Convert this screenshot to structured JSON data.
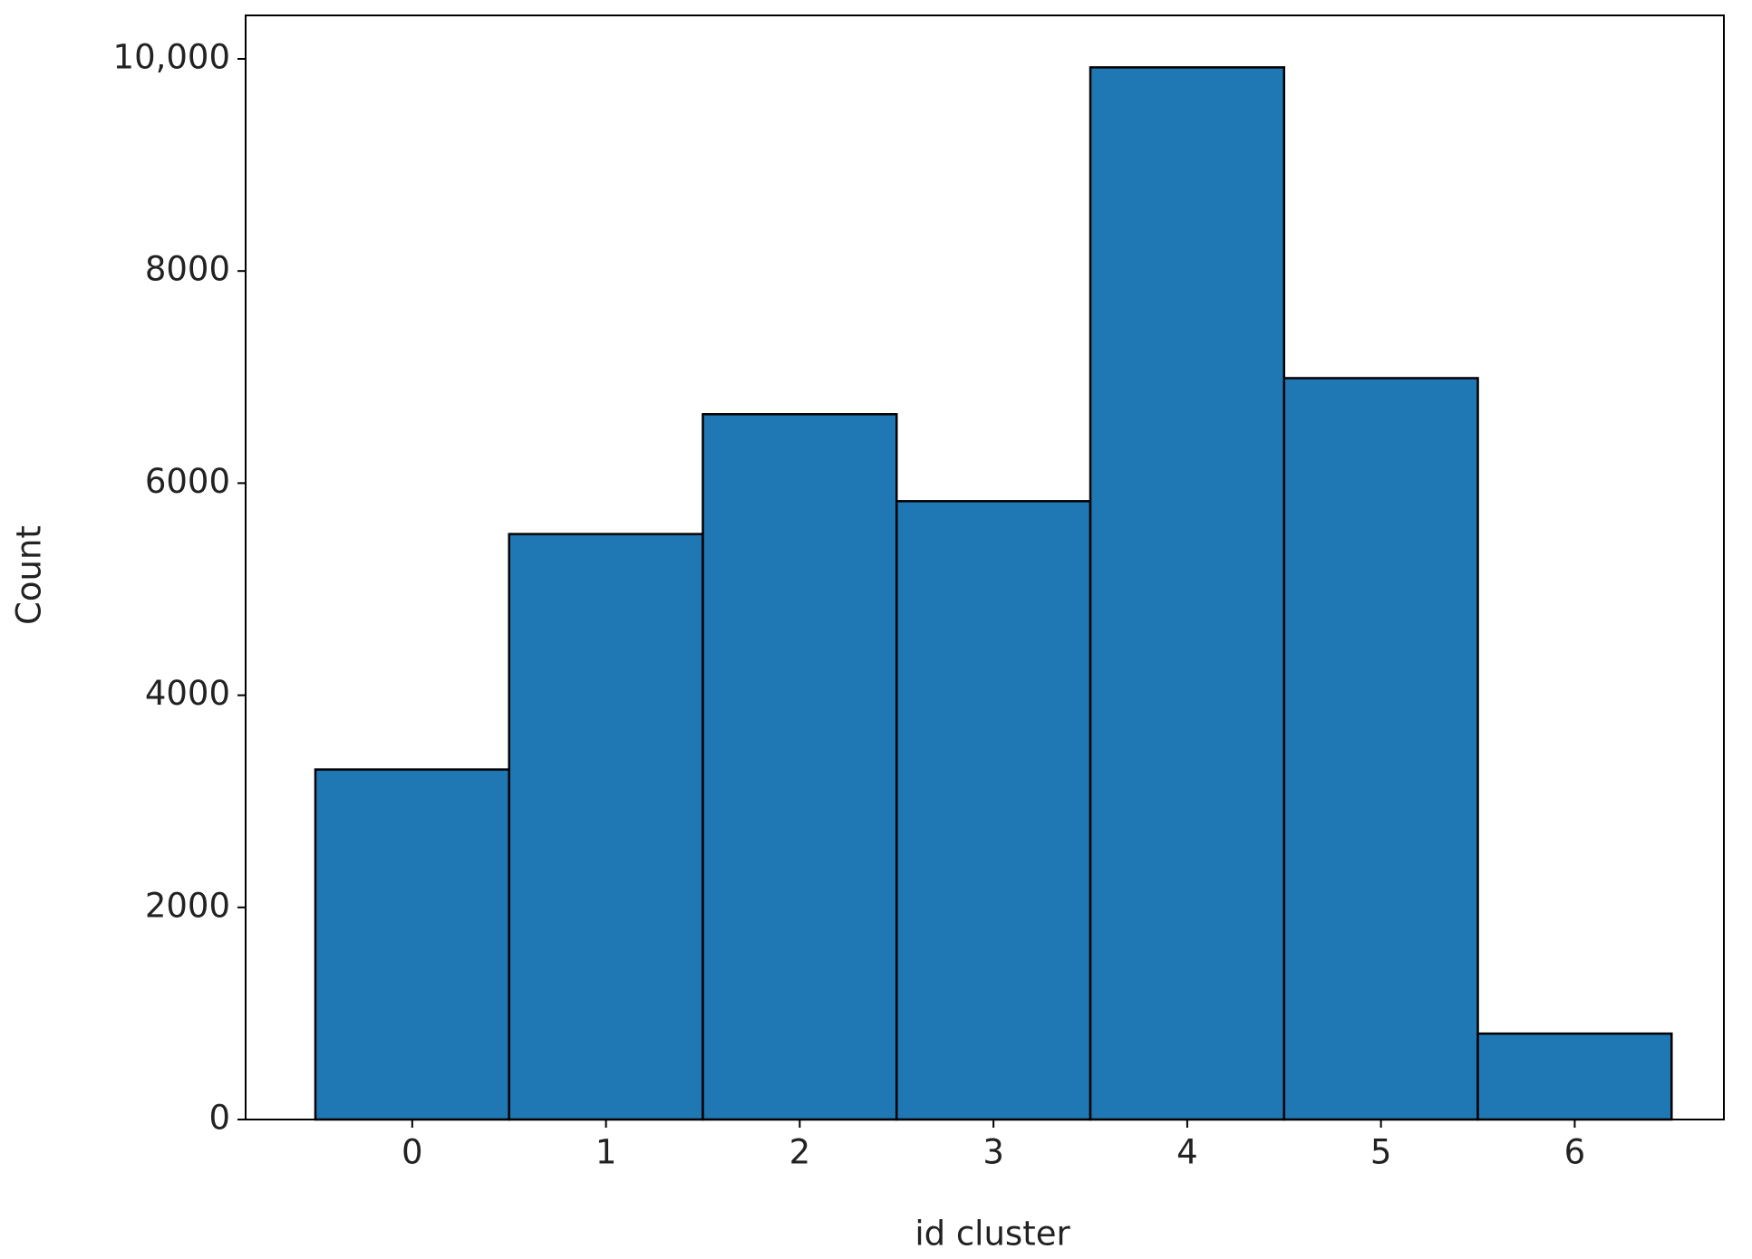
{
  "chart_data": {
    "type": "histogram",
    "x_label": "id cluster",
    "y_label": "Count",
    "bins": [
      -0.5,
      0.5,
      1.5,
      2.5,
      3.5,
      4.5,
      5.5,
      6.5
    ],
    "values": [
      3300,
      5520,
      6650,
      5830,
      9920,
      6990,
      810
    ],
    "color": "#1f77b4",
    "edgecolor": "#000000",
    "xlim": [
      -0.86,
      6.77
    ],
    "ylim": [
      0,
      10410
    ],
    "xticks": [
      0,
      1,
      2,
      3,
      4,
      5,
      6
    ],
    "yticks": [
      0,
      2000,
      4000,
      6000,
      8000,
      {
        "value": 10000,
        "label": "10,000"
      }
    ]
  }
}
